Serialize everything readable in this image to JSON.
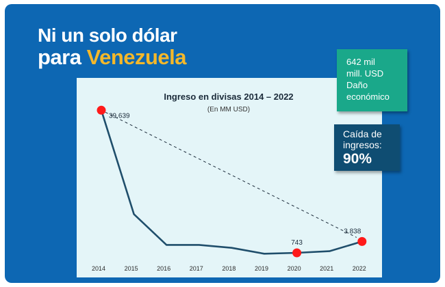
{
  "headline": {
    "line1": "Ni un solo dólar",
    "line2_prefix": "para ",
    "line2_accent": "Venezuela"
  },
  "callouts": {
    "damage": [
      "642 mil",
      "mill. USD",
      "Daño",
      "económico"
    ],
    "drop_label": [
      "Caída de",
      "ingresos:"
    ],
    "drop_value": "90%"
  },
  "colors": {
    "background": "#0d67b3",
    "accent": "#f4b82a",
    "line": "#1f4e6b",
    "point": "#ff1a1a",
    "panel": "#e4f5f8",
    "green_box": "#1aa88a",
    "dark_box": "#0f4d72"
  },
  "chart_data": {
    "type": "line",
    "title": "Ingreso en divisas 2014 – 2022",
    "subtitle": "(En MM USD)",
    "x": [
      "2014",
      "2015",
      "2016",
      "2017",
      "2018",
      "2019",
      "2020",
      "2021",
      "2022"
    ],
    "values": [
      39639,
      11300,
      2900,
      2900,
      2100,
      500,
      743,
      1200,
      3838
    ],
    "data_labels": [
      {
        "x": "2014",
        "text": "39.639"
      },
      {
        "x": "2020",
        "text": "743"
      },
      {
        "x": "2022",
        "text": "3.838"
      }
    ],
    "highlighted_points": [
      "2014",
      "2020",
      "2022"
    ],
    "trend_line": {
      "from": "2014",
      "to": "2022",
      "style": "dashed"
    },
    "ylim": [
      0,
      41000
    ],
    "grid": false,
    "legend": "none"
  }
}
